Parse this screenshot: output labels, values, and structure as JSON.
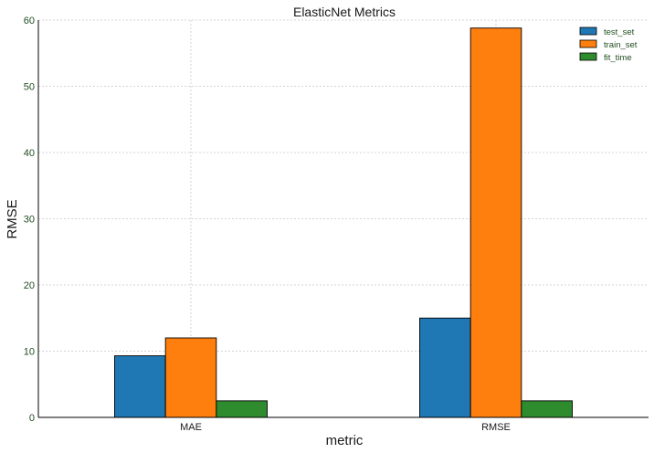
{
  "chart_data": {
    "type": "bar",
    "title": "ElasticNet Metrics",
    "xlabel": "metric",
    "ylabel": "RMSE",
    "categories": [
      "MAE",
      "RMSE"
    ],
    "series": [
      {
        "name": "test_set",
        "color": "#1f77b4",
        "values": [
          9.3,
          15.0
        ]
      },
      {
        "name": "train_set",
        "color": "#ff7f0e",
        "values": [
          12.0,
          58.8
        ]
      },
      {
        "name": "fit_time",
        "color": "#2e8b2e",
        "values": [
          2.5,
          2.5
        ]
      }
    ],
    "ylim": [
      0,
      60
    ],
    "yticks": [
      0,
      10,
      20,
      30,
      40,
      50,
      60
    ],
    "grid": true,
    "legend_position": "top-right"
  }
}
